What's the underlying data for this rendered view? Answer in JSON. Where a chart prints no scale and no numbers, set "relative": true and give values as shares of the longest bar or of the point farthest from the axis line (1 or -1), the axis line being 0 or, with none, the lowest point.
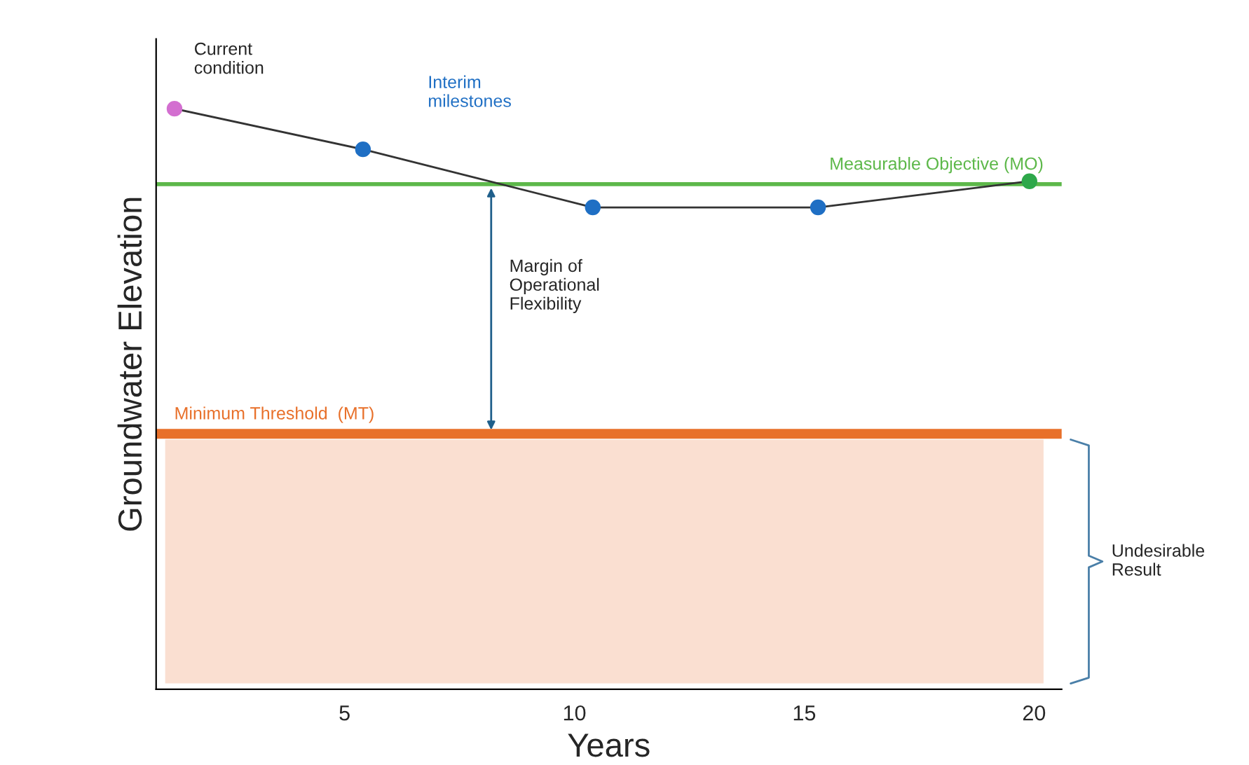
{
  "chart_data": {
    "type": "line",
    "relative": true,
    "xlabel": "Years",
    "ylabel": "Groundwater Elevation",
    "x": [
      1.3,
      5.4,
      10.4,
      15.3,
      19.9
    ],
    "xlim": [
      0.9,
      20.6
    ],
    "xticks": [
      5,
      10,
      15,
      20
    ],
    "series": [
      {
        "values": [
          1,
          0.93,
          0.83,
          0.83,
          0.875
        ],
        "color": "#333333",
        "colors": [
          "#d36fd0",
          "#1f6fc4",
          "#1f6fc4",
          "#1f6fc4",
          "#2ea84a"
        ]
      }
    ],
    "marker": "circle",
    "line_style": "solid",
    "grid": false,
    "legend": false,
    "ref_lines": [
      {
        "axis": "y",
        "value": 0.87,
        "label": "Measurable Objective (MO)",
        "color": "#5db84a"
      },
      {
        "axis": "y",
        "value": 0.44,
        "label": "Minimum Threshold  (MT)",
        "color": "#e8702a"
      }
    ],
    "bands": [
      {
        "axis": "y",
        "from": 0.01,
        "to": 0.43,
        "color": "#fadfd1"
      }
    ],
    "annotations": [
      {
        "text": "Current\ncondition",
        "x": 1.3,
        "y": 1
      },
      "Interim\nmilestones",
      "Margin of\nOperational\nFlexibility",
      "Undesirable Result"
    ]
  }
}
